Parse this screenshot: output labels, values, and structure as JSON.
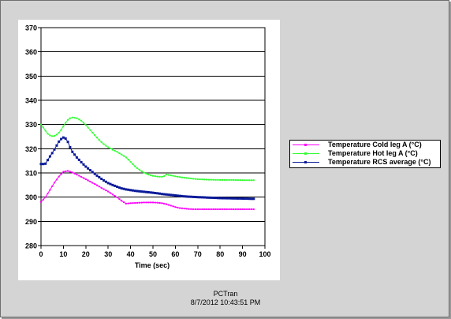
{
  "chart_data": {
    "type": "line",
    "title": "",
    "xlabel": "Time (sec)",
    "ylabel": "",
    "xlim": [
      0,
      100
    ],
    "ylim": [
      280,
      370
    ],
    "xticks": [
      0,
      10,
      20,
      30,
      40,
      50,
      60,
      70,
      80,
      90,
      100
    ],
    "yticks": [
      280,
      290,
      300,
      310,
      320,
      330,
      340,
      350,
      360,
      370
    ],
    "grid": "horizontal",
    "legend_position": "right",
    "series": [
      {
        "name": "Temperature Cold leg A (°C)",
        "color": "#ff00ff",
        "x": [
          0,
          2,
          4,
          6,
          8,
          10,
          12,
          14,
          16,
          18,
          20,
          22,
          24,
          26,
          28,
          30,
          32,
          34,
          36,
          38,
          40,
          42,
          44,
          46,
          48,
          50,
          52,
          54,
          56,
          58,
          60,
          62,
          64,
          66,
          68,
          70,
          75,
          80,
          85,
          90,
          95
        ],
        "y": [
          298,
          300,
          303,
          306,
          308.5,
          310.5,
          310.8,
          310.2,
          309.3,
          308.4,
          307.4,
          306.4,
          305.4,
          304.4,
          303.3,
          302.3,
          301.1,
          299.9,
          298.5,
          297.3,
          297.5,
          297.6,
          297.7,
          297.8,
          297.8,
          297.8,
          297.7,
          297.5,
          297.1,
          296.5,
          295.9,
          295.5,
          295.3,
          295.1,
          295,
          295,
          295,
          295,
          295,
          295,
          295
        ]
      },
      {
        "name": "Temperature Hot leg A (°C)",
        "color": "#33ff33",
        "x": [
          0,
          1,
          2,
          3,
          4,
          5,
          6,
          7,
          8,
          9,
          10,
          11,
          12,
          13,
          14,
          16,
          18,
          20,
          22,
          24,
          26,
          28,
          30,
          32,
          34,
          36,
          38,
          40,
          42,
          44,
          46,
          48,
          50,
          52,
          54,
          55,
          56,
          58,
          60,
          62,
          64,
          66,
          68,
          70,
          75,
          80,
          85,
          90,
          95
        ],
        "y": [
          330,
          328.8,
          327.4,
          326.2,
          325.5,
          325.2,
          325.3,
          325.8,
          326.6,
          327.8,
          329.3,
          330.7,
          331.9,
          332.6,
          332.9,
          332.6,
          331.6,
          329.8,
          327.7,
          325.6,
          323.6,
          321.9,
          320.6,
          319.6,
          318.7,
          317.6,
          316.4,
          314.6,
          312.7,
          311.2,
          310.1,
          309.3,
          308.8,
          308.5,
          308.4,
          308.7,
          309.3,
          309,
          308.6,
          308.3,
          308,
          307.8,
          307.6,
          307.4,
          307.2,
          307.1,
          307.1,
          307,
          307
        ]
      },
      {
        "name": "Temperature RCS average (°C)",
        "color": "#0a1a99",
        "x": [
          0,
          1,
          2,
          3,
          4,
          5,
          6,
          7,
          8,
          9,
          10,
          11,
          12,
          13,
          14,
          16,
          18,
          20,
          22,
          24,
          26,
          28,
          30,
          32,
          34,
          36,
          38,
          40,
          42,
          44,
          46,
          48,
          50,
          52,
          54,
          56,
          58,
          60,
          62,
          64,
          66,
          68,
          70,
          75,
          80,
          85,
          90,
          95
        ],
        "y": [
          313.7,
          313.7,
          313.8,
          315.3,
          316.8,
          318.2,
          319.7,
          321.3,
          322.9,
          324,
          324.6,
          324.2,
          322.8,
          320.6,
          318.7,
          316.4,
          314.4,
          312.6,
          311.1,
          309.6,
          308.2,
          306.9,
          305.8,
          305,
          304.3,
          303.6,
          303.2,
          302.9,
          302.6,
          302.4,
          302.2,
          302,
          301.8,
          301.6,
          301.3,
          301.1,
          300.9,
          300.7,
          300.5,
          300.3,
          300.2,
          300.1,
          300,
          299.8,
          299.6,
          299.5,
          299.4,
          299.3
        ]
      }
    ]
  },
  "footer": {
    "app_name": "PCTran",
    "timestamp": "8/7/2012 10:43:51 PM"
  }
}
